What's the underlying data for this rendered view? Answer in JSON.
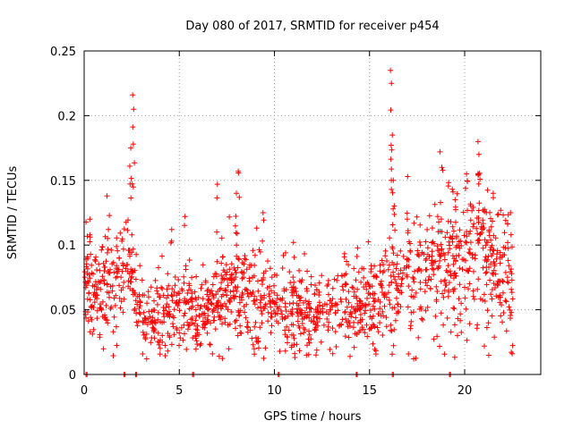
{
  "chart_data": {
    "type": "scatter",
    "title": "Day 080 of 2017, SRMTID for receiver p454",
    "xlabel": "GPS time / hours",
    "ylabel": "SRMTID / TECUs",
    "xlim": [
      0,
      24
    ],
    "ylim": [
      0,
      0.25
    ],
    "x_ticks": [
      0,
      5,
      10,
      15,
      20
    ],
    "x_tick_labels": [
      "0",
      "5",
      "10",
      "15",
      "20"
    ],
    "y_ticks": [
      0,
      0.05,
      0.1,
      0.15,
      0.2,
      0.25
    ],
    "y_tick_labels": [
      "0",
      "0.05",
      "0.1",
      "0.15",
      "0.2",
      "0.25"
    ],
    "grid": true,
    "marker": "+",
    "color": "#ff0000",
    "zero_points_x": [
      0.1,
      2.1,
      2.7,
      5.7,
      10.2,
      14.3,
      16.2,
      19.2
    ],
    "envelope": [
      {
        "x": 0.0,
        "y": 0.075
      },
      {
        "x": 0.5,
        "y": 0.06
      },
      {
        "x": 1.0,
        "y": 0.065
      },
      {
        "x": 1.5,
        "y": 0.07
      },
      {
        "x": 2.0,
        "y": 0.075
      },
      {
        "x": 2.3,
        "y": 0.08
      },
      {
        "x": 2.6,
        "y": 0.06
      },
      {
        "x": 3.0,
        "y": 0.04
      },
      {
        "x": 4.0,
        "y": 0.045
      },
      {
        "x": 5.0,
        "y": 0.05
      },
      {
        "x": 6.0,
        "y": 0.045
      },
      {
        "x": 7.0,
        "y": 0.05
      },
      {
        "x": 8.0,
        "y": 0.065
      },
      {
        "x": 9.0,
        "y": 0.055
      },
      {
        "x": 10.0,
        "y": 0.05
      },
      {
        "x": 11.0,
        "y": 0.05
      },
      {
        "x": 12.0,
        "y": 0.045
      },
      {
        "x": 13.0,
        "y": 0.05
      },
      {
        "x": 14.0,
        "y": 0.05
      },
      {
        "x": 15.0,
        "y": 0.055
      },
      {
        "x": 16.0,
        "y": 0.06
      },
      {
        "x": 17.0,
        "y": 0.07
      },
      {
        "x": 18.0,
        "y": 0.08
      },
      {
        "x": 19.0,
        "y": 0.075
      },
      {
        "x": 20.0,
        "y": 0.09
      },
      {
        "x": 21.0,
        "y": 0.085
      },
      {
        "x": 22.0,
        "y": 0.075
      },
      {
        "x": 22.5,
        "y": 0.07
      }
    ],
    "spikes": [
      {
        "x": 2.55,
        "y": 0.216
      },
      {
        "x": 2.6,
        "y": 0.205
      },
      {
        "x": 2.45,
        "y": 0.175
      },
      {
        "x": 7.0,
        "y": 0.147
      },
      {
        "x": 8.1,
        "y": 0.157
      },
      {
        "x": 8.0,
        "y": 0.14
      },
      {
        "x": 16.1,
        "y": 0.235
      },
      {
        "x": 16.15,
        "y": 0.225
      },
      {
        "x": 16.2,
        "y": 0.185
      },
      {
        "x": 16.25,
        "y": 0.15
      },
      {
        "x": 18.7,
        "y": 0.172
      },
      {
        "x": 18.8,
        "y": 0.16
      },
      {
        "x": 20.7,
        "y": 0.18
      },
      {
        "x": 20.75,
        "y": 0.17
      },
      {
        "x": 20.1,
        "y": 0.155
      },
      {
        "x": 1.2,
        "y": 0.138
      },
      {
        "x": 17.0,
        "y": 0.153
      },
      {
        "x": 0.3,
        "y": 0.12
      },
      {
        "x": 4.6,
        "y": 0.112
      },
      {
        "x": 5.3,
        "y": 0.122
      },
      {
        "x": 9.4,
        "y": 0.125
      },
      {
        "x": 11.0,
        "y": 0.102
      },
      {
        "x": 19.5,
        "y": 0.135
      },
      {
        "x": 21.5,
        "y": 0.14
      },
      {
        "x": 22.5,
        "y": 0.016
      }
    ],
    "point_count": 1500,
    "random_seed": 454
  }
}
